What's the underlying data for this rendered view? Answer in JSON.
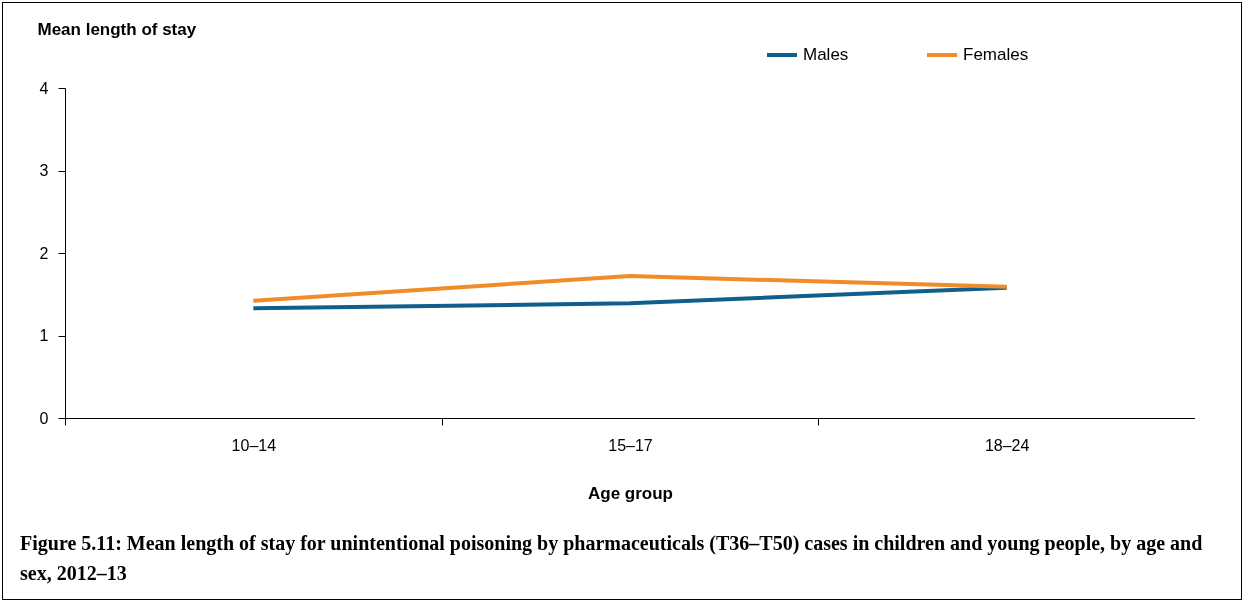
{
  "chart_data": {
    "type": "line",
    "title": "Figure 5.11: Mean length of stay for unintentional poisoning by pharmaceuticals (T36–T50) cases in children and young people, by age and sex, 2012–13",
    "xlabel": "Age group",
    "ylabel": "Mean length of stay",
    "categories": [
      "10–14",
      "15–17",
      "18–24"
    ],
    "series": [
      {
        "name": "Males",
        "color": "#0e5f8c",
        "values": [
          1.33,
          1.39,
          1.58
        ]
      },
      {
        "name": "Females",
        "color": "#f28c28",
        "values": [
          1.42,
          1.72,
          1.59
        ]
      }
    ],
    "ylim": [
      0,
      4
    ],
    "yticks": [
      0,
      1,
      2,
      3,
      4
    ],
    "grid": false,
    "legend": "top right",
    "marker": "none",
    "line_style": "solid"
  }
}
